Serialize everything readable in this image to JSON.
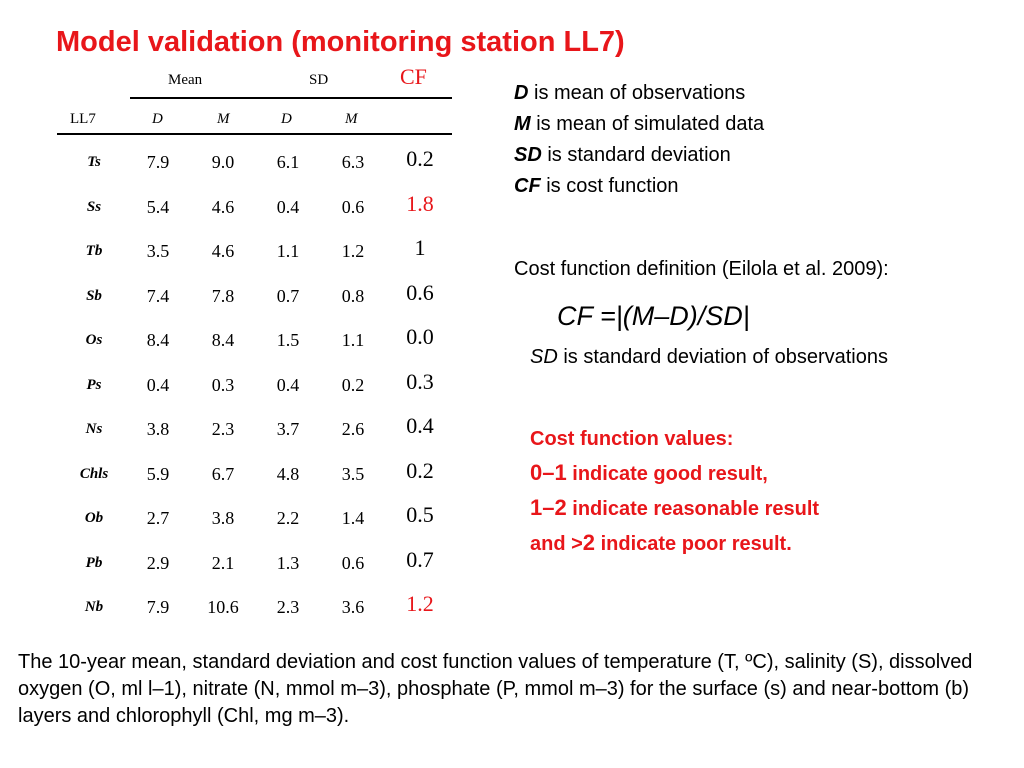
{
  "title": "Model validation (monitoring station LL7)",
  "table": {
    "group_headers": [
      "Mean",
      "SD"
    ],
    "cf_header": "CF",
    "station_label": "LL7",
    "sub_headers": [
      "D",
      "M",
      "D",
      "M"
    ],
    "rows": [
      {
        "label": "Ts",
        "values": [
          "7.9",
          "9.0",
          "6.1",
          "6.3"
        ],
        "cf": "0.2"
      },
      {
        "label": "Ss",
        "values": [
          "5.4",
          "4.6",
          "0.4",
          "0.6"
        ],
        "cf": "1.8"
      },
      {
        "label": "Tb",
        "values": [
          "3.5",
          "4.6",
          "1.1",
          "1.2"
        ],
        "cf": "1"
      },
      {
        "label": "Sb",
        "values": [
          "7.4",
          "7.8",
          "0.7",
          "0.8"
        ],
        "cf": "0.6"
      },
      {
        "label": "Os",
        "values": [
          "8.4",
          "8.4",
          "1.5",
          "1.1"
        ],
        "cf": "0.0"
      },
      {
        "label": "Ps",
        "values": [
          "0.4",
          "0.3",
          "0.4",
          "0.2"
        ],
        "cf": "0.3"
      },
      {
        "label": "Ns",
        "values": [
          "3.8",
          "2.3",
          "3.7",
          "2.6"
        ],
        "cf": "0.4"
      },
      {
        "label": "Chls",
        "values": [
          "5.9",
          "6.7",
          "4.8",
          "3.5"
        ],
        "cf": "0.2"
      },
      {
        "label": "Ob",
        "values": [
          "2.7",
          "3.8",
          "2.2",
          "1.4"
        ],
        "cf": "0.5"
      },
      {
        "label": "Pb",
        "values": [
          "2.9",
          "2.1",
          "1.3",
          "0.6"
        ],
        "cf": "0.7"
      },
      {
        "label": "Nb",
        "values": [
          "7.9",
          "10.6",
          "2.3",
          "3.6"
        ],
        "cf": "1.2"
      }
    ],
    "cf_highlight_color": "#e8161a"
  },
  "definitions": [
    {
      "symbol": "D",
      "text": " is mean of observations"
    },
    {
      "symbol": "M",
      "text": " is mean of simulated data"
    },
    {
      "symbol": "SD",
      "text": " is standard deviation"
    },
    {
      "symbol": "CF",
      "text": " is cost function"
    }
  ],
  "cost_function_definition": "Cost function definition (Eilola et al. 2009):",
  "formula": "CF =|(M–D)/SD|",
  "sd_note": {
    "symbol": "SD",
    "text": " is standard deviation of observations"
  },
  "cf_values": {
    "heading": "Cost function values:",
    "lines": [
      {
        "range": "0–1",
        "text": " indicate good result,"
      },
      {
        "range": "1–2",
        "text": " indicate reasonable result"
      },
      {
        "prefix": "and >",
        "range": "2",
        "text": " indicate poor result."
      }
    ]
  },
  "caption": "The 10-year mean, standard deviation and cost function values of temperature (T, ºC), salinity (S), dissolved oxygen (O, ml l–1), nitrate (N, mmol m–3), phosphate (P, mmol m–3) for the surface (s) and near-bottom (b) layers and chlorophyll (Chl, mg m–3).",
  "colors": {
    "accent_red": "#e8161a",
    "text": "#000000",
    "background": "#ffffff"
  }
}
